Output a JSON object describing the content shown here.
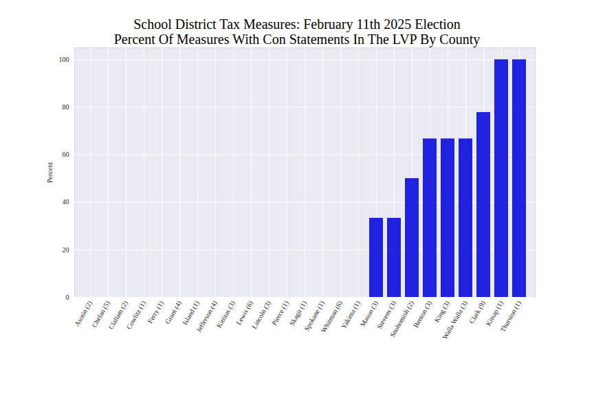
{
  "chart_data": {
    "type": "bar",
    "title": "School District Tax Measures: February 11th 2025 Election\nPercent Of Measures With Con Statements In The LVP By County",
    "y_label": "Percent",
    "categories": [
      "Asotin (2)",
      "Chelan (5)",
      "Clallam (2)",
      "Cowlitz (1)",
      "Ferry (1)",
      "Grant (4)",
      "Island (1)",
      "Jefferson (4)",
      "Kittitas (3)",
      "Lewis (6)",
      "Lincoln (3)",
      "Pierce (1)",
      "Skagit (1)",
      "Spokane (1)",
      "Whitman (6)",
      "Yakima (1)",
      "Mason (3)",
      "Stevens (3)",
      "Snohomish (2)",
      "Benton (3)",
      "King (3)",
      "Walla Walla (3)",
      "Clark (9)",
      "Kitsap (1)",
      "Thurston (1)"
    ],
    "values": [
      0,
      0,
      0,
      0,
      0,
      0,
      0,
      0,
      0,
      0,
      0,
      0,
      0,
      0,
      0,
      0,
      33.3,
      33.3,
      50,
      66.7,
      66.7,
      66.7,
      77.8,
      100,
      100
    ],
    "color": "#2121e0",
    "ylim": [
      0,
      105
    ],
    "yticks": [
      0,
      20,
      40,
      60,
      80,
      100
    ],
    "grid": true
  }
}
